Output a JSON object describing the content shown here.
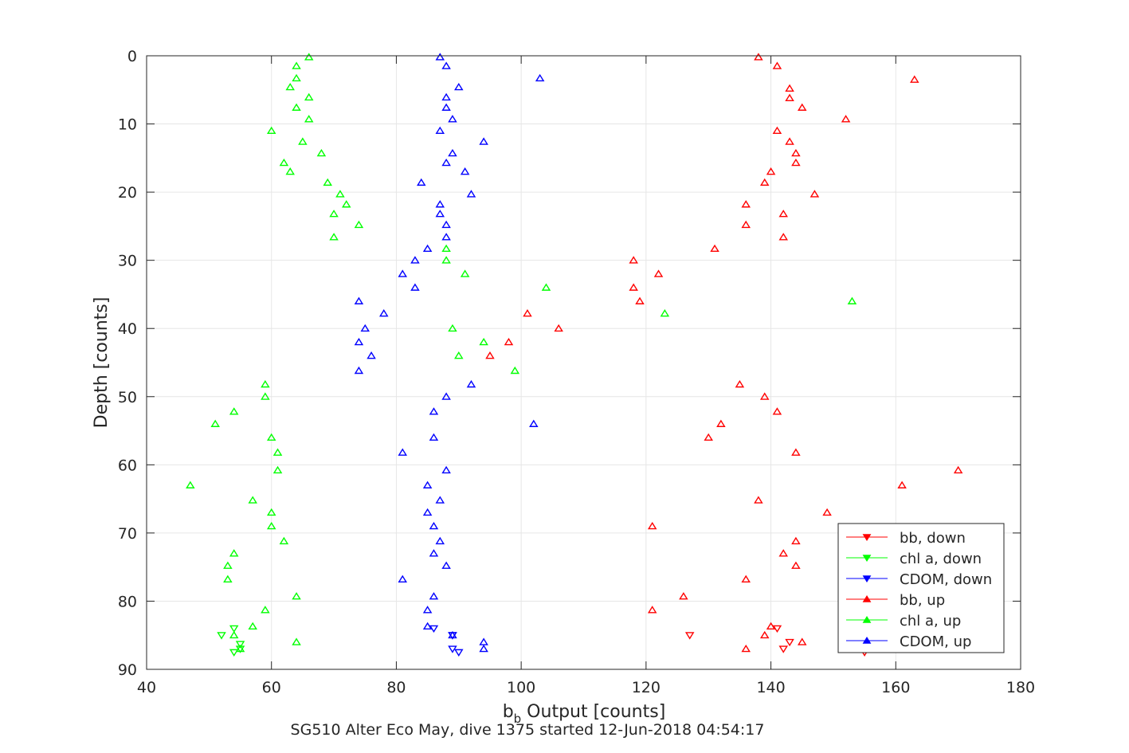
{
  "chart_data": {
    "type": "scatter",
    "xlabel_main": "b",
    "xlabel_sub": "b",
    "xlabel_rest": " Output [counts]",
    "ylabel": "Depth [counts]",
    "caption": "SG510 Alter Eco May, dive 1375 started 12-Jun-2018 04:54:17",
    "xlim": [
      40,
      180
    ],
    "ylim": [
      0,
      90
    ],
    "y_reversed": true,
    "grid": true,
    "legend_position": "bottom-right",
    "xticks": [
      40,
      60,
      80,
      100,
      120,
      140,
      160,
      180
    ],
    "yticks": [
      0,
      10,
      20,
      30,
      40,
      50,
      60,
      70,
      80,
      90
    ],
    "series": [
      {
        "name": "bb, down",
        "color": "#ff0000",
        "marker": "triangle-down",
        "points": [
          [
            127,
            85
          ],
          [
            142,
            87
          ],
          [
            143,
            86
          ],
          [
            155,
            87.5
          ],
          [
            141,
            84
          ]
        ]
      },
      {
        "name": "chl a, down",
        "color": "#00ff00",
        "marker": "triangle-down",
        "points": [
          [
            52,
            85
          ],
          [
            54,
            87.5
          ],
          [
            55,
            86.3
          ],
          [
            55,
            87
          ],
          [
            54,
            84
          ]
        ]
      },
      {
        "name": "CDOM, down",
        "color": "#0000ff",
        "marker": "triangle-down",
        "points": [
          [
            89,
            85
          ],
          [
            89,
            87
          ],
          [
            90,
            87.5
          ],
          [
            86,
            84
          ],
          [
            89,
            85
          ]
        ]
      },
      {
        "name": "bb, up",
        "color": "#ff0000",
        "marker": "triangle-up",
        "points": [
          [
            138,
            0.2
          ],
          [
            141,
            1.5
          ],
          [
            163,
            3.5
          ],
          [
            143,
            4.8
          ],
          [
            143,
            6.2
          ],
          [
            145,
            7.6
          ],
          [
            152,
            9.3
          ],
          [
            141,
            11
          ],
          [
            143,
            12.6
          ],
          [
            144,
            14.3
          ],
          [
            144,
            15.7
          ],
          [
            140,
            17
          ],
          [
            139,
            18.6
          ],
          [
            147,
            20.3
          ],
          [
            136,
            21.8
          ],
          [
            142,
            23.2
          ],
          [
            136,
            24.8
          ],
          [
            142,
            26.6
          ],
          [
            131,
            28.3
          ],
          [
            118,
            30
          ],
          [
            122,
            32
          ],
          [
            118,
            34
          ],
          [
            119,
            36
          ],
          [
            101,
            37.8
          ],
          [
            106,
            40
          ],
          [
            98,
            42
          ],
          [
            95,
            44
          ],
          [
            135,
            48.2
          ],
          [
            139,
            50
          ],
          [
            141,
            52.2
          ],
          [
            132,
            54
          ],
          [
            130,
            56
          ],
          [
            144,
            58.2
          ],
          [
            170,
            60.8
          ],
          [
            161,
            63
          ],
          [
            138,
            65.2
          ],
          [
            149,
            67
          ],
          [
            121,
            69
          ],
          [
            144,
            71.2
          ],
          [
            142,
            73
          ],
          [
            144,
            74.8
          ],
          [
            136,
            76.8
          ],
          [
            126,
            79.3
          ],
          [
            121,
            81.3
          ],
          [
            140,
            83.7
          ],
          [
            139,
            85
          ],
          [
            145,
            86
          ],
          [
            136,
            87
          ]
        ]
      },
      {
        "name": "chl a, up",
        "color": "#00ff00",
        "marker": "triangle-up",
        "points": [
          [
            66,
            0.2
          ],
          [
            64,
            1.5
          ],
          [
            64,
            3.3
          ],
          [
            63,
            4.6
          ],
          [
            66,
            6.1
          ],
          [
            64,
            7.6
          ],
          [
            66,
            9.3
          ],
          [
            60,
            11
          ],
          [
            65,
            12.6
          ],
          [
            68,
            14.3
          ],
          [
            62,
            15.7
          ],
          [
            63,
            17
          ],
          [
            69,
            18.6
          ],
          [
            71,
            20.3
          ],
          [
            72,
            21.8
          ],
          [
            70,
            23.2
          ],
          [
            74,
            24.8
          ],
          [
            70,
            26.6
          ],
          [
            88,
            28.3
          ],
          [
            88,
            30
          ],
          [
            91,
            32
          ],
          [
            104,
            34
          ],
          [
            153,
            36
          ],
          [
            123,
            37.8
          ],
          [
            89,
            40
          ],
          [
            94,
            42
          ],
          [
            90,
            44
          ],
          [
            99,
            46.2
          ],
          [
            59,
            48.2
          ],
          [
            59,
            50
          ],
          [
            54,
            52.2
          ],
          [
            51,
            54
          ],
          [
            60,
            56
          ],
          [
            61,
            58.2
          ],
          [
            61,
            60.8
          ],
          [
            47,
            63
          ],
          [
            57,
            65.2
          ],
          [
            60,
            67
          ],
          [
            60,
            69
          ],
          [
            62,
            71.2
          ],
          [
            54,
            73
          ],
          [
            53,
            74.8
          ],
          [
            53,
            76.8
          ],
          [
            64,
            79.3
          ],
          [
            59,
            81.3
          ],
          [
            57,
            83.7
          ],
          [
            54,
            85
          ],
          [
            64,
            86
          ],
          [
            55,
            87
          ]
        ]
      },
      {
        "name": "CDOM, up",
        "color": "#0000ff",
        "marker": "triangle-up",
        "points": [
          [
            87,
            0.2
          ],
          [
            88,
            1.5
          ],
          [
            103,
            3.3
          ],
          [
            90,
            4.6
          ],
          [
            88,
            6.1
          ],
          [
            88,
            7.6
          ],
          [
            89,
            9.3
          ],
          [
            87,
            11
          ],
          [
            94,
            12.6
          ],
          [
            89,
            14.3
          ],
          [
            88,
            15.7
          ],
          [
            91,
            17
          ],
          [
            84,
            18.6
          ],
          [
            92,
            20.3
          ],
          [
            87,
            21.8
          ],
          [
            87,
            23.2
          ],
          [
            88,
            24.8
          ],
          [
            88,
            26.6
          ],
          [
            85,
            28.3
          ],
          [
            83,
            30
          ],
          [
            81,
            32
          ],
          [
            83,
            34
          ],
          [
            74,
            36
          ],
          [
            78,
            37.8
          ],
          [
            75,
            40
          ],
          [
            74,
            42
          ],
          [
            76,
            44
          ],
          [
            74,
            46.2
          ],
          [
            92,
            48.2
          ],
          [
            88,
            50
          ],
          [
            86,
            52.2
          ],
          [
            102,
            54
          ],
          [
            86,
            56
          ],
          [
            81,
            58.2
          ],
          [
            88,
            60.8
          ],
          [
            85,
            63
          ],
          [
            87,
            65.2
          ],
          [
            85,
            67
          ],
          [
            86,
            69
          ],
          [
            87,
            71.2
          ],
          [
            86,
            73
          ],
          [
            88,
            74.8
          ],
          [
            81,
            76.8
          ],
          [
            86,
            79.3
          ],
          [
            85,
            81.3
          ],
          [
            85,
            83.7
          ],
          [
            89,
            85
          ],
          [
            94,
            86
          ],
          [
            94,
            87
          ]
        ]
      }
    ]
  }
}
